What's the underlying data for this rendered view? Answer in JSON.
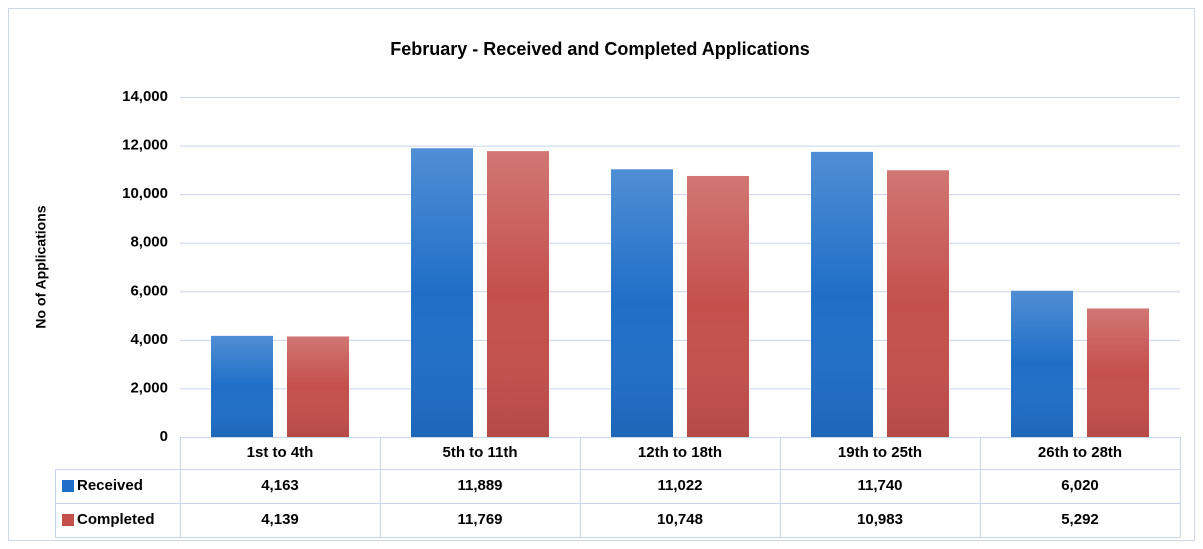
{
  "chart_data": {
    "type": "bar",
    "title": "February - Received and Completed Applications",
    "y_label": "No of Applications",
    "categories": [
      "1st to 4th",
      "5th to 11th",
      "12th to 18th",
      "19th to 25th",
      "26th to 28th"
    ],
    "series": [
      {
        "name": "Received",
        "color": "#1f6fc8",
        "values": [
          4163,
          11889,
          11022,
          11740,
          6020
        ],
        "value_labels": [
          "4,163",
          "11,889",
          "11,022",
          "11,740",
          "6,020"
        ]
      },
      {
        "name": "Completed",
        "color": "#c4504c",
        "values": [
          4139,
          11769,
          10748,
          10983,
          5292
        ],
        "value_labels": [
          "4,139",
          "11,769",
          "10,748",
          "10,983",
          "5,292"
        ]
      }
    ],
    "ylim": [
      0,
      14000
    ],
    "yticks": [
      0,
      {
        "value": 2000,
        "label": "2,000"
      },
      {
        "value": 4000,
        "label": "4,000"
      },
      {
        "value": 6000,
        "label": "6,000"
      },
      {
        "value": 8000,
        "label": "8,000"
      },
      {
        "value": 10000,
        "label": "10,000"
      },
      {
        "value": 12000,
        "label": "12,000"
      },
      {
        "value": 14000,
        "label": "14,000"
      }
    ],
    "grid": true,
    "data_table": true
  }
}
